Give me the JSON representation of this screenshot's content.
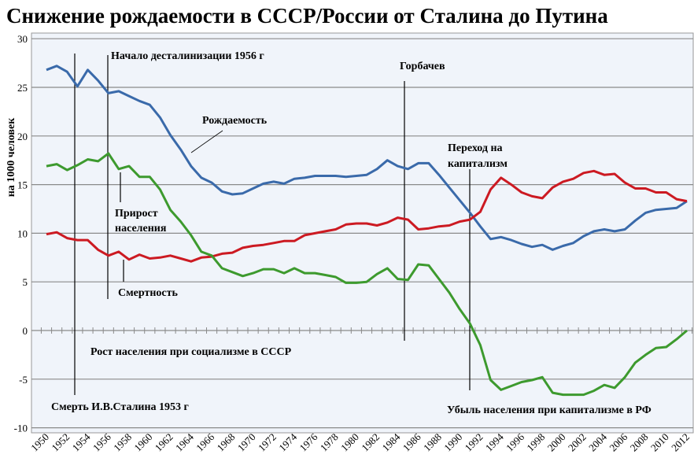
{
  "chart_data": {
    "type": "line",
    "title": "Снижение рождаемости в СССР/России от Сталина до Путина",
    "xlabel": "",
    "ylabel": "на 1000 человек",
    "ylim": [
      -10,
      30
    ],
    "yticks": [
      30,
      25,
      20,
      15,
      10,
      5,
      0,
      -5,
      -10
    ],
    "grid": true,
    "x": [
      1950,
      1951,
      1952,
      1953,
      1954,
      1955,
      1956,
      1957,
      1958,
      1959,
      1960,
      1961,
      1962,
      1963,
      1964,
      1965,
      1966,
      1967,
      1968,
      1969,
      1970,
      1971,
      1972,
      1973,
      1974,
      1975,
      1976,
      1977,
      1978,
      1979,
      1980,
      1981,
      1982,
      1983,
      1984,
      1985,
      1986,
      1987,
      1988,
      1989,
      1990,
      1991,
      1992,
      1993,
      1994,
      1995,
      1996,
      1997,
      1998,
      1999,
      2000,
      2001,
      2002,
      2003,
      2004,
      2005,
      2006,
      2007,
      2008,
      2009,
      2010,
      2011,
      2012
    ],
    "xticks": [
      "1950",
      "1952",
      "1954",
      "1956",
      "1958",
      "1960",
      "1962",
      "1964",
      "1966",
      "1968",
      "1970",
      "1972",
      "1974",
      "1976",
      "1978",
      "1980",
      "1982",
      "1984",
      "1986",
      "1988",
      "1990",
      "1992",
      "1994",
      "1996",
      "1998",
      "2000",
      "2002",
      "2004",
      "2006",
      "2008",
      "2010",
      "2012"
    ],
    "series": [
      {
        "name": "Рождаемость",
        "color": "#3a6aaa",
        "values": [
          26.8,
          27.2,
          26.6,
          25.1,
          26.8,
          25.7,
          24.4,
          24.6,
          24.1,
          23.6,
          23.2,
          21.9,
          20.1,
          18.6,
          16.9,
          15.7,
          15.2,
          14.3,
          14.0,
          14.1,
          14.6,
          15.1,
          15.3,
          15.1,
          15.6,
          15.7,
          15.9,
          15.9,
          15.9,
          15.8,
          15.9,
          16.0,
          16.6,
          17.5,
          16.9,
          16.6,
          17.2,
          17.2,
          16.0,
          14.7,
          13.4,
          12.1,
          10.7,
          9.4,
          9.6,
          9.3,
          8.9,
          8.6,
          8.8,
          8.3,
          8.7,
          9.0,
          9.7,
          10.2,
          10.4,
          10.2,
          10.4,
          11.3,
          12.1,
          12.4,
          12.5,
          12.6,
          13.3
        ]
      },
      {
        "name": "Смертность",
        "color": "#cc1a22",
        "values": [
          9.9,
          10.1,
          9.5,
          9.3,
          9.3,
          8.3,
          7.7,
          8.1,
          7.3,
          7.8,
          7.4,
          7.5,
          7.7,
          7.4,
          7.1,
          7.5,
          7.6,
          7.9,
          8.0,
          8.5,
          8.7,
          8.8,
          9.0,
          9.2,
          9.2,
          9.8,
          10.0,
          10.2,
          10.4,
          10.9,
          11.0,
          11.0,
          10.8,
          11.1,
          11.6,
          11.4,
          10.4,
          10.5,
          10.7,
          10.8,
          11.2,
          11.4,
          12.2,
          14.5,
          15.7,
          15.0,
          14.2,
          13.8,
          13.6,
          14.7,
          15.3,
          15.6,
          16.2,
          16.4,
          16.0,
          16.1,
          15.2,
          14.6,
          14.6,
          14.2,
          14.2,
          13.5,
          13.3
        ]
      },
      {
        "name": "Прирост населения",
        "color": "#3d9a2e",
        "values": [
          16.9,
          17.1,
          16.5,
          17.0,
          17.6,
          17.4,
          18.2,
          16.6,
          16.9,
          15.8,
          15.8,
          14.5,
          12.4,
          11.2,
          9.8,
          8.1,
          7.7,
          6.4,
          6.0,
          5.6,
          5.9,
          6.3,
          6.3,
          5.9,
          6.4,
          5.9,
          5.9,
          5.7,
          5.5,
          4.9,
          4.9,
          5.0,
          5.8,
          6.4,
          5.3,
          5.2,
          6.8,
          6.7,
          5.3,
          3.9,
          2.2,
          0.7,
          -1.5,
          -5.1,
          -6.1,
          -5.7,
          -5.3,
          -5.1,
          -4.8,
          -6.4,
          -6.6,
          -6.6,
          -6.6,
          -6.2,
          -5.6,
          -5.9,
          -4.8,
          -3.3,
          -2.5,
          -1.8,
          -1.7,
          -0.9,
          0.0
        ]
      }
    ],
    "annotations": {
      "destalinization": "Начало десталинизации 1956 г",
      "birth_label": "Рождаемость",
      "growth_label_1": "Прирост",
      "growth_label_2": "населения",
      "death_label": "Смертность",
      "gorbachev": "Горбачев",
      "capitalism_1": "Переход на",
      "capitalism_2": "капитализм",
      "growth_ussr": "Рост населения при социализме в СССР",
      "stalin_death": "Смерть И.В.Сталина 1953 г",
      "decline_rf": "Убыль населения при капитализме в РФ"
    }
  }
}
